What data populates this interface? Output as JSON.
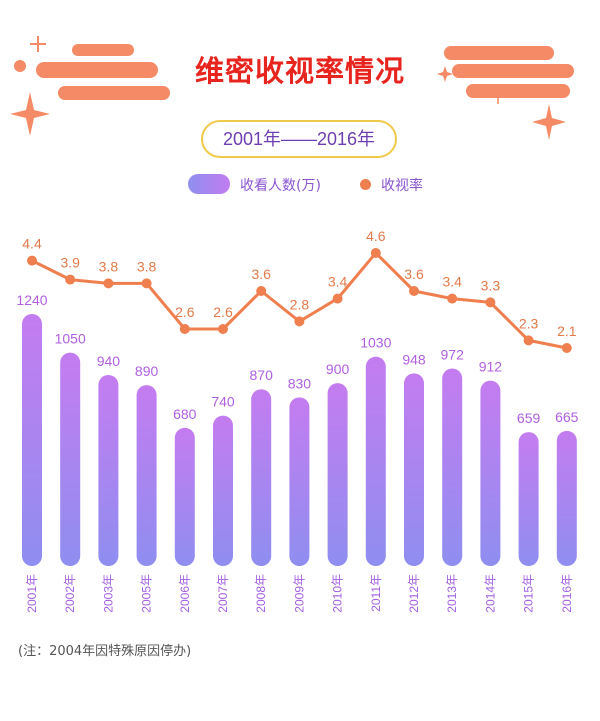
{
  "title": "维密收视率情况",
  "period": "2001年——2016年",
  "note": "(注：2004年因特殊原因停办)",
  "colors": {
    "title": "#e8241e",
    "bar_top": "#c47cf0",
    "bar_bottom": "#8f8ef0",
    "line": "#ef7f4f",
    "viewer_label": "#b060e0",
    "rating_label": "#e07a4a",
    "year_label": "#a35fe0",
    "decor": "#f58a66"
  },
  "chart_data": {
    "type": "bar",
    "categories": [
      "2001年",
      "2002年",
      "2003年",
      "2005年",
      "2006年",
      "2007年",
      "2008年",
      "2009年",
      "2010年",
      "2011年",
      "2012年",
      "2013年",
      "2014年",
      "2015年",
      "2016年"
    ],
    "series": [
      {
        "name": "收看人数(万)",
        "type": "bar",
        "values": [
          1240,
          1050,
          940,
          890,
          680,
          740,
          870,
          830,
          900,
          1030,
          948,
          972,
          912,
          659,
          665
        ]
      },
      {
        "name": "收视率",
        "type": "line",
        "values": [
          4.4,
          3.9,
          3.8,
          3.8,
          2.6,
          2.6,
          3.6,
          2.8,
          3.4,
          4.6,
          3.6,
          3.4,
          3.3,
          2.3,
          2.1
        ]
      }
    ],
    "legend": "top-center",
    "grid": false
  }
}
